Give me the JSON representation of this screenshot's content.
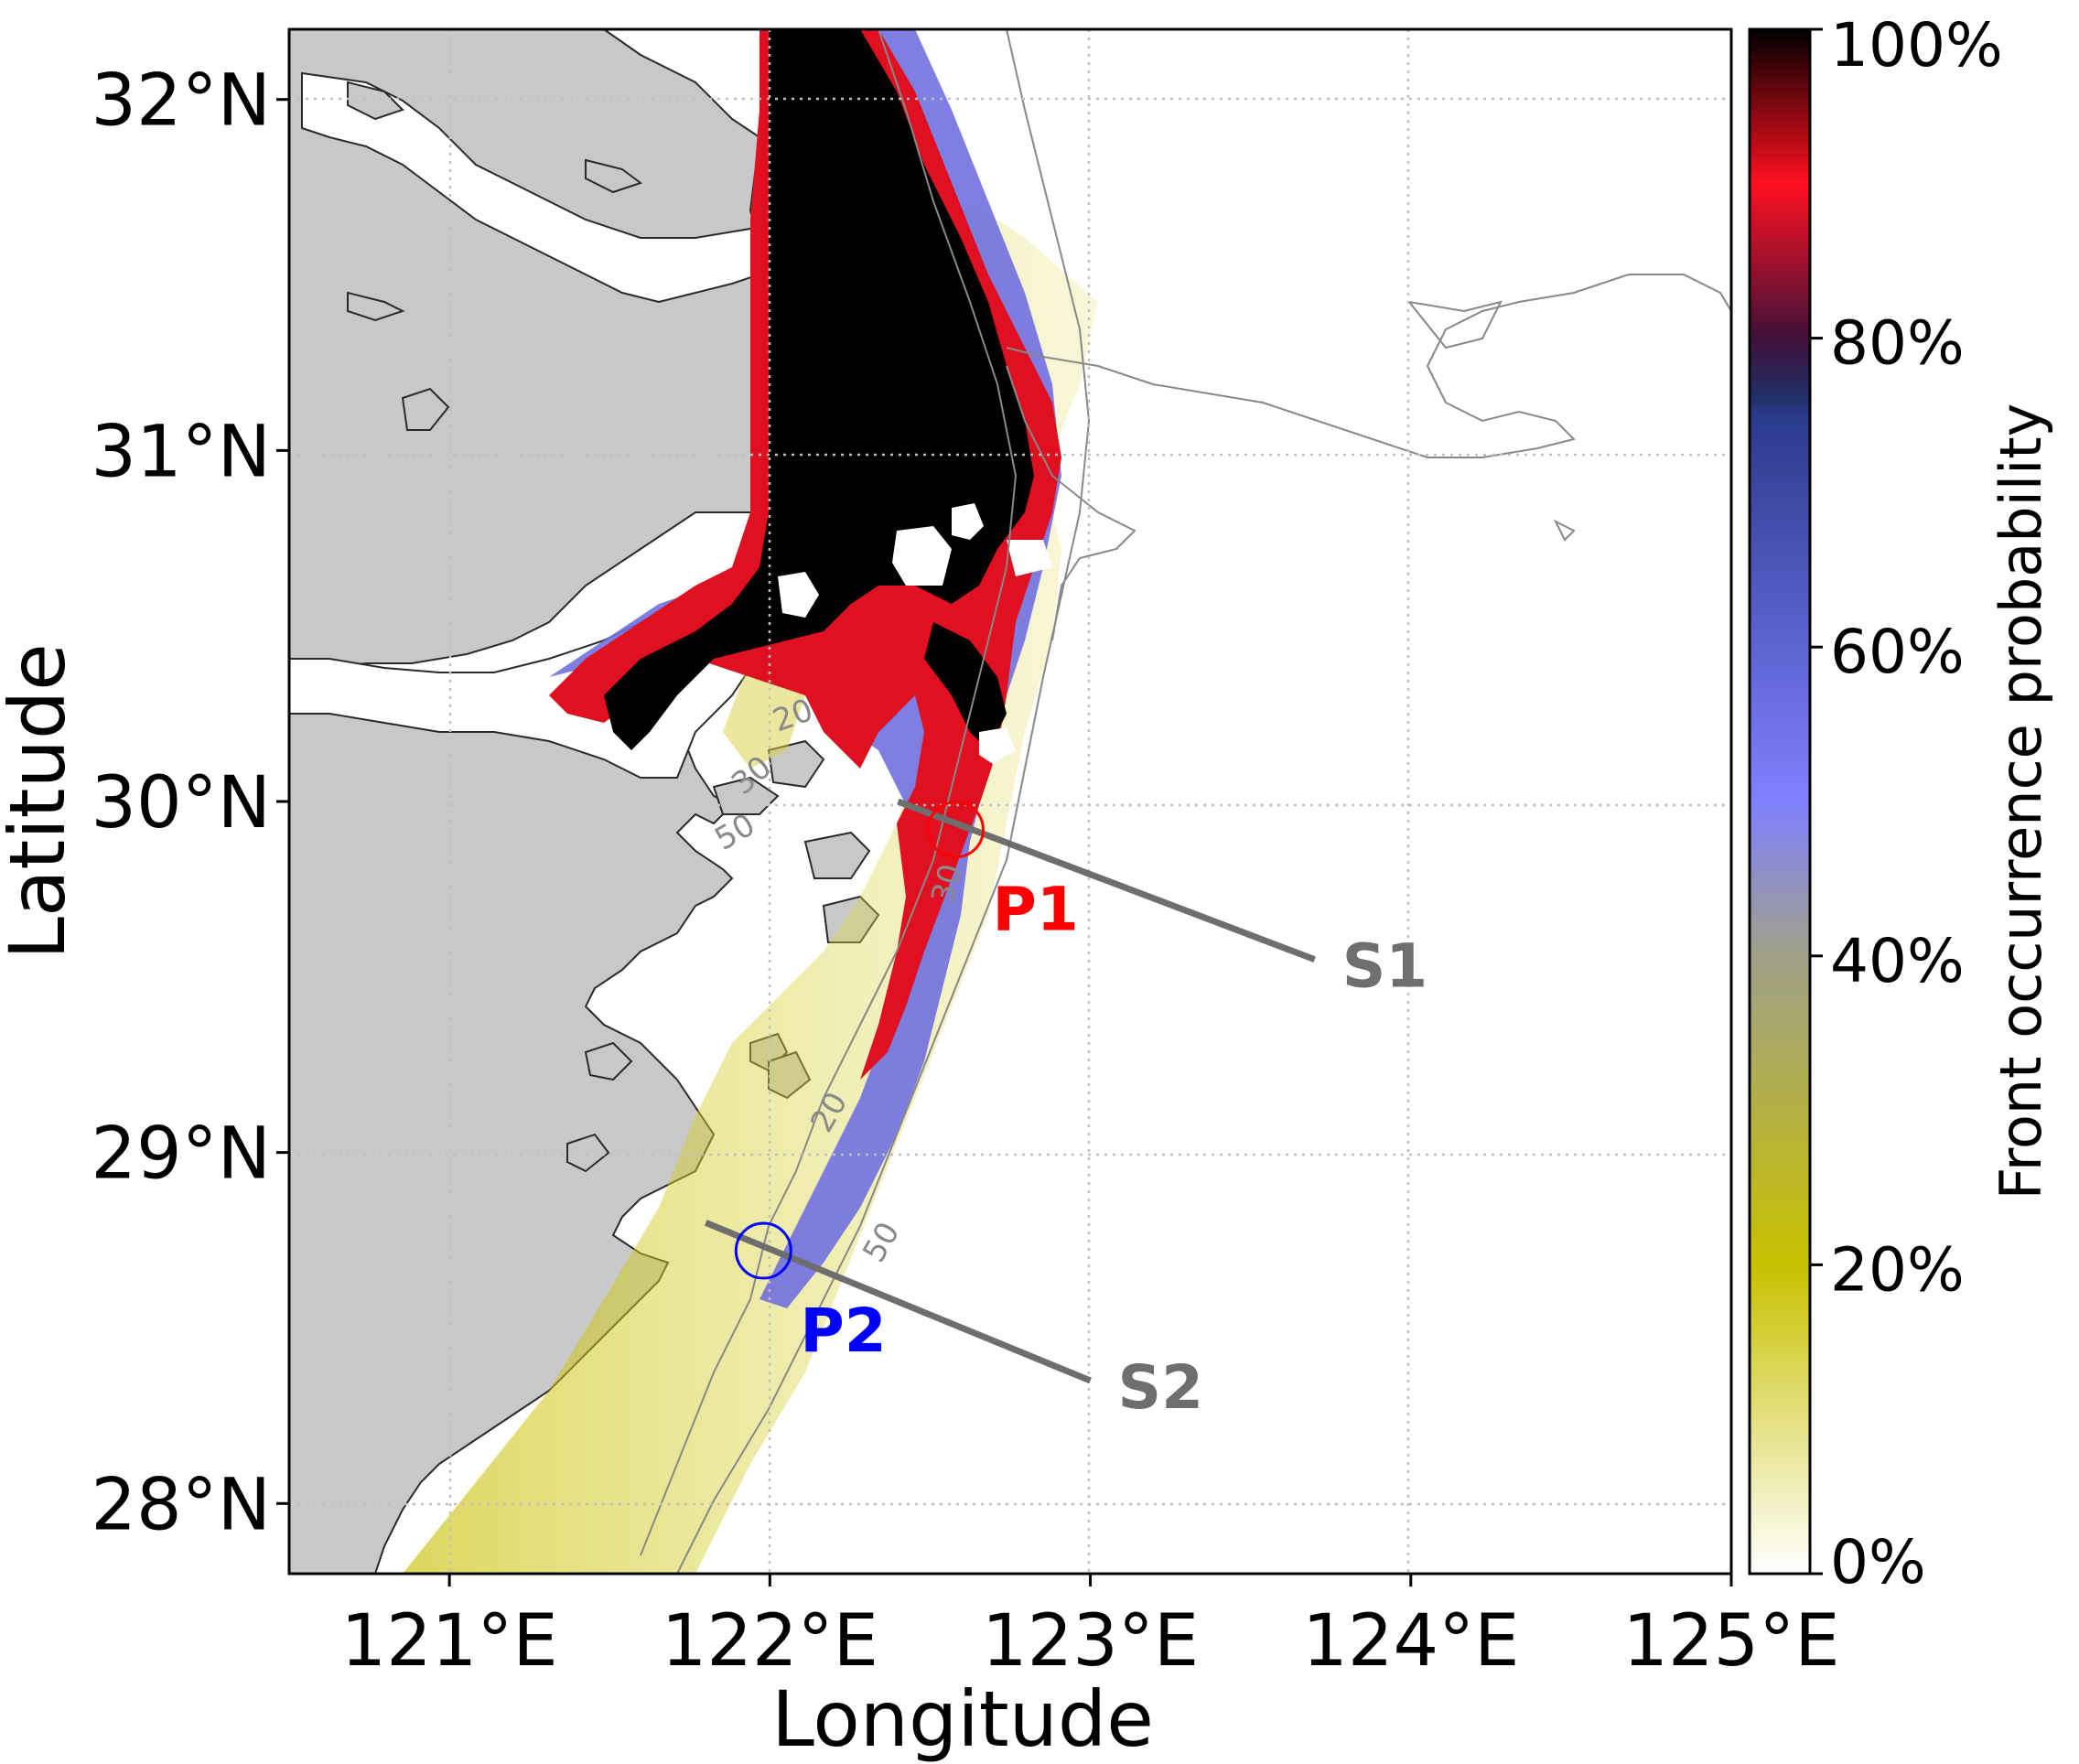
{
  "map": {
    "xlabel": "Longitude",
    "ylabel": "Latitude",
    "x_ticks": [
      "121°E",
      "122°E",
      "123°E",
      "124°E",
      "125°E"
    ],
    "y_ticks": [
      "28°N",
      "29°N",
      "30°N",
      "31°N",
      "32°N"
    ],
    "extent": {
      "lon": [
        120.5,
        125.0
      ],
      "lat": [
        27.8,
        32.2
      ]
    },
    "grid": "dotted",
    "contours": [
      "20",
      "30",
      "50",
      "20",
      "50",
      "30"
    ],
    "sections": [
      {
        "label": "S1",
        "label_color": "#6e6e6e",
        "start": [
          122.4,
          30.0
        ],
        "end": [
          123.7,
          29.55
        ]
      },
      {
        "label": "S2",
        "label_color": "#6e6e6e",
        "start": [
          121.8,
          28.8
        ],
        "end": [
          123.0,
          28.35
        ]
      }
    ],
    "points": [
      {
        "label": "P1",
        "color": "#ff0000",
        "lon": 122.58,
        "lat": 29.92
      },
      {
        "label": "P2",
        "color": "#0000ff",
        "lon": 121.98,
        "lat": 28.72
      }
    ],
    "land_color": "#c8c8c8"
  },
  "colorbar": {
    "label": "Front occurrence probability",
    "ticks": [
      "0%",
      "20%",
      "40%",
      "60%",
      "80%",
      "100%"
    ],
    "stops": [
      {
        "value": 0,
        "color": "#ffffff"
      },
      {
        "value": 20,
        "color": "#c8c000"
      },
      {
        "value": 40,
        "color": "#a0a088"
      },
      {
        "value": 50,
        "color": "#8080ff"
      },
      {
        "value": 75,
        "color": "#2a3a8a"
      },
      {
        "value": 76,
        "color": "#20306a"
      },
      {
        "value": 80,
        "color": "#401038"
      },
      {
        "value": 90,
        "color": "#ff1020"
      },
      {
        "value": 100,
        "color": "#000000"
      }
    ]
  }
}
